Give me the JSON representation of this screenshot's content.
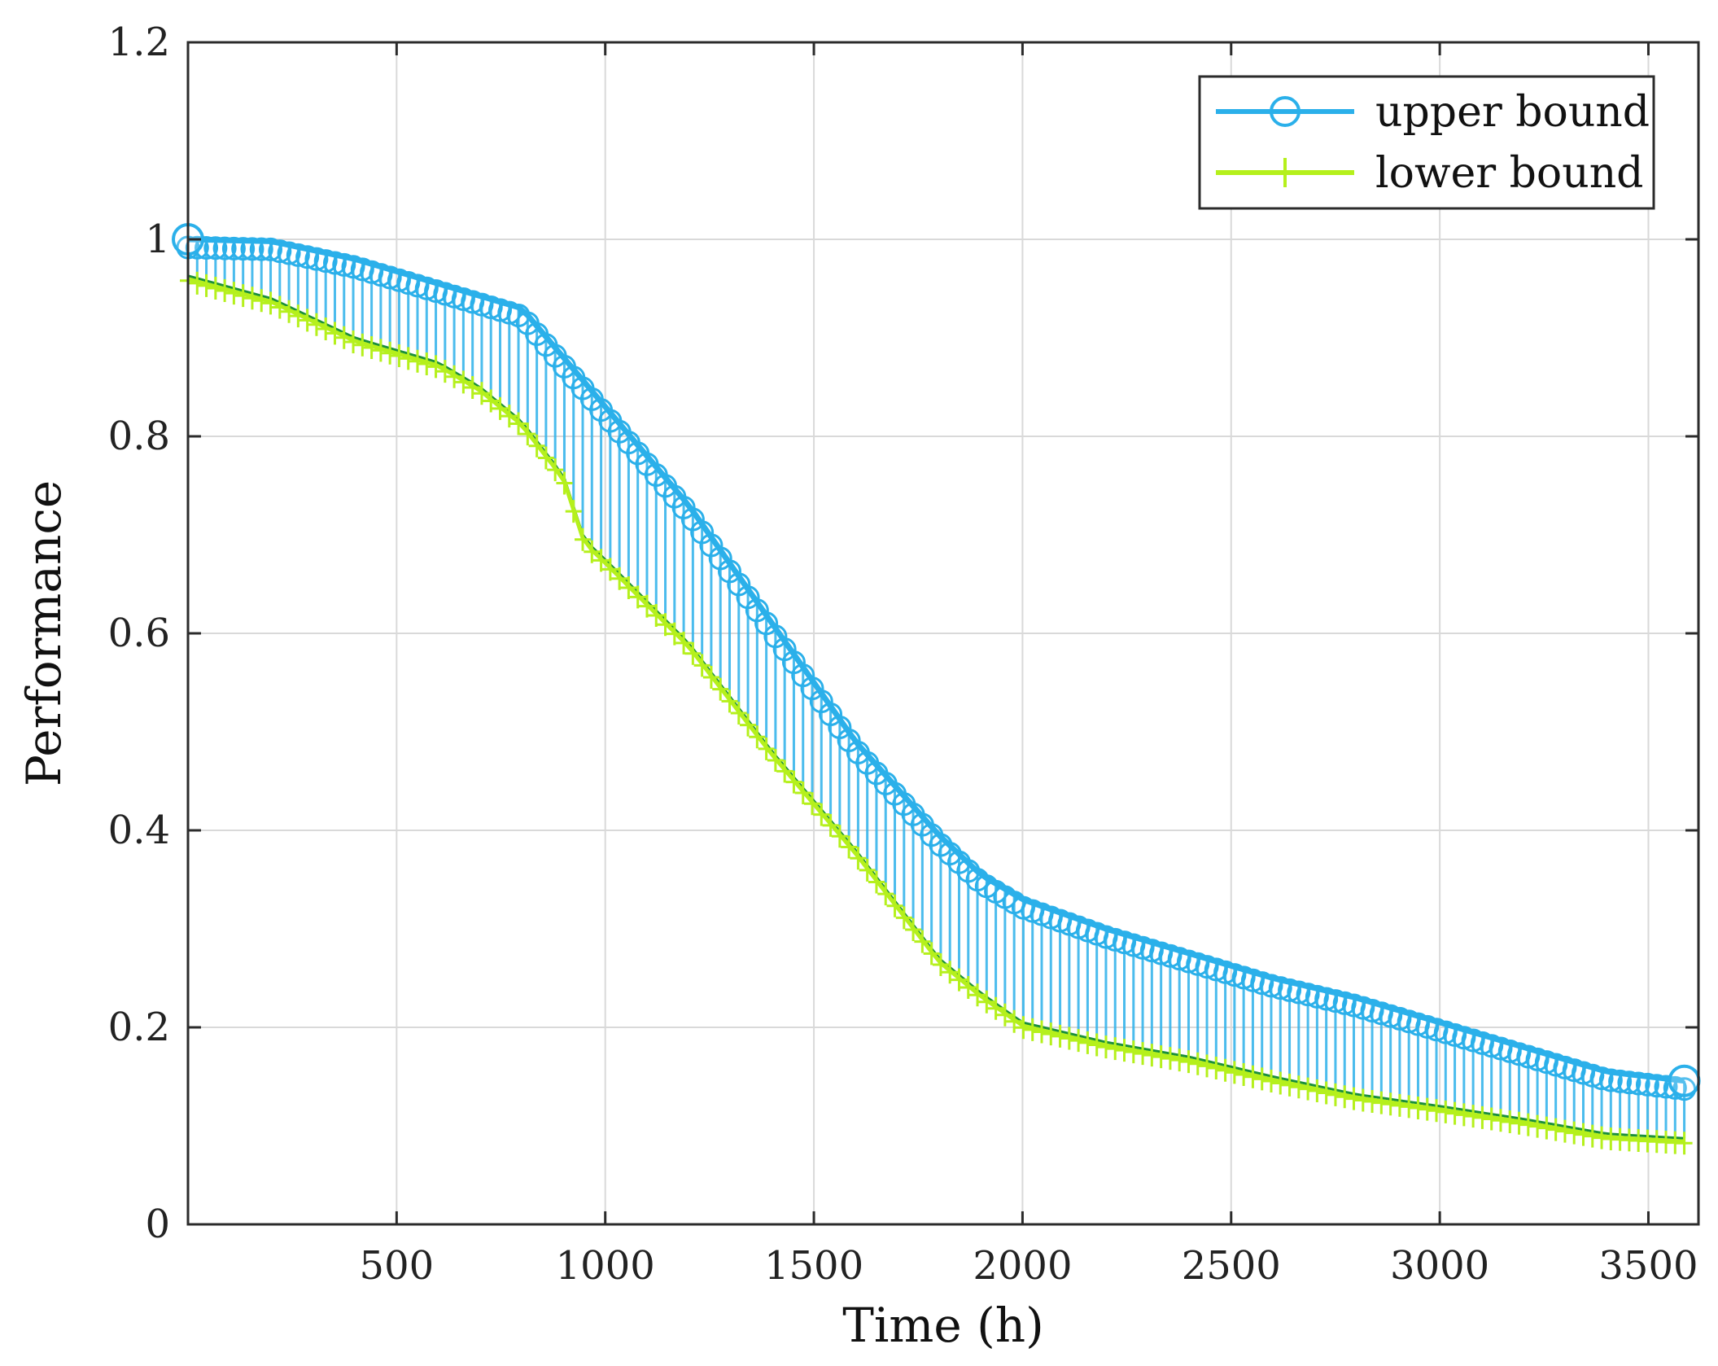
{
  "chart_data": {
    "type": "line",
    "title": "",
    "xlabel": "Time (h)",
    "ylabel": "Performance",
    "xlim": [
      0,
      3620
    ],
    "ylim": [
      0,
      1.2
    ],
    "xticks": [
      500,
      1000,
      1500,
      2000,
      2500,
      3000,
      3500
    ],
    "xtick_labels": [
      "500",
      "1000",
      "1500",
      "2000",
      "2500",
      "3000",
      "3500"
    ],
    "yticks": [
      0,
      0.2,
      0.4,
      0.6,
      0.8,
      1.0,
      1.2
    ],
    "ytick_labels": [
      "0",
      "0.2",
      "0.4",
      "0.6",
      "0.8",
      "1",
      "1.2"
    ],
    "grid": true,
    "legend_position": "top-right",
    "series": [
      {
        "name": "upper bound",
        "color": "#2bb0ea",
        "marker": "circle",
        "x": [
          0,
          200,
          400,
          600,
          800,
          1000,
          1200,
          1400,
          1600,
          1800,
          1900,
          2000,
          2200,
          2400,
          2600,
          2800,
          3000,
          3200,
          3400,
          3600
        ],
        "y": [
          1.0,
          0.998,
          0.98,
          0.955,
          0.93,
          0.83,
          0.73,
          0.61,
          0.49,
          0.395,
          0.355,
          0.33,
          0.3,
          0.275,
          0.25,
          0.23,
          0.205,
          0.18,
          0.155,
          0.145
        ]
      },
      {
        "name": "lower bound",
        "color": "#b5f01c",
        "marker": "plus",
        "x": [
          0,
          200,
          400,
          600,
          700,
          800,
          900,
          950,
          1000,
          1200,
          1400,
          1600,
          1800,
          1900,
          2000,
          2200,
          2400,
          2600,
          2800,
          3000,
          3200,
          3400,
          3600
        ],
        "y": [
          0.963,
          0.94,
          0.9,
          0.875,
          0.85,
          0.815,
          0.76,
          0.695,
          0.675,
          0.59,
          0.48,
          0.38,
          0.27,
          0.235,
          0.205,
          0.185,
          0.17,
          0.15,
          0.132,
          0.12,
          0.107,
          0.092,
          0.087
        ]
      }
    ]
  }
}
